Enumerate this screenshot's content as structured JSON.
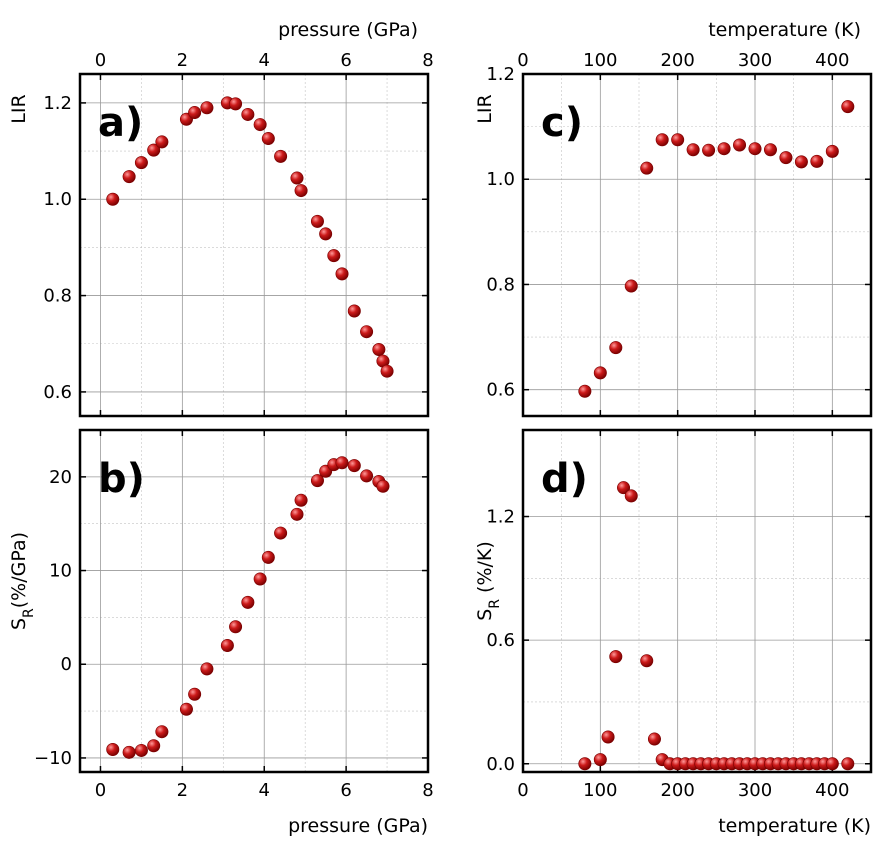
{
  "colors": {
    "marker": "#cc1a1a",
    "marker_highlight": "#ff9a9a",
    "marker_edge": "#7a0000",
    "grid": "#9a9a9a",
    "frame": "#000000"
  },
  "chart_data": [
    {
      "id": "a",
      "type": "scatter",
      "panel_label": "a)",
      "xlabel": "pressure (GPa)",
      "ylabel": "LIR",
      "xlabel_position": "top",
      "xlim": [
        -0.5,
        8
      ],
      "ylim": [
        0.55,
        1.26
      ],
      "xticks": [
        0,
        2,
        4,
        6,
        8
      ],
      "yticks": [
        0.6,
        0.8,
        1.0,
        1.2
      ],
      "ytick_labels": [
        "0.6",
        "0.8",
        "1.0",
        "1.2"
      ],
      "show_bottom_ticklabels": false,
      "grid": true,
      "x": [
        0.3,
        0.7,
        1.0,
        1.3,
        1.5,
        2.1,
        2.3,
        2.6,
        3.1,
        3.3,
        3.6,
        3.9,
        4.1,
        4.4,
        4.8,
        4.9,
        5.3,
        5.5,
        5.7,
        5.9,
        6.2,
        6.5,
        6.8,
        6.9,
        7.0
      ],
      "y": [
        1.0,
        1.047,
        1.076,
        1.102,
        1.119,
        1.166,
        1.18,
        1.19,
        1.2,
        1.198,
        1.176,
        1.155,
        1.126,
        1.089,
        1.044,
        1.018,
        0.954,
        0.928,
        0.883,
        0.845,
        0.768,
        0.725,
        0.688,
        0.664,
        0.643
      ]
    },
    {
      "id": "b",
      "type": "scatter",
      "panel_label": "b)",
      "xlabel": "pressure (GPa)",
      "ylabel": "S",
      "ylabel_sub": "R",
      "ylabel_suffix": "(%/GPa)",
      "xlabel_position": "bottom",
      "xlim": [
        -0.5,
        8
      ],
      "ylim": [
        -11.5,
        25
      ],
      "xticks": [
        0,
        2,
        4,
        6,
        8
      ],
      "yticks": [
        -10,
        0,
        10,
        20
      ],
      "ytick_labels": [
        "−10",
        "0",
        "10",
        "20"
      ],
      "show_bottom_ticklabels": true,
      "grid": true,
      "x": [
        0.3,
        0.7,
        1.0,
        1.3,
        1.5,
        2.1,
        2.3,
        2.6,
        3.1,
        3.3,
        3.6,
        3.9,
        4.1,
        4.4,
        4.8,
        4.9,
        5.3,
        5.5,
        5.7,
        5.9,
        6.2,
        6.5,
        6.8,
        6.9
      ],
      "y": [
        -9.1,
        -9.4,
        -9.2,
        -8.7,
        -7.2,
        -4.8,
        -3.2,
        -0.5,
        2.0,
        4.0,
        6.6,
        9.1,
        11.4,
        14.0,
        16.0,
        17.5,
        19.6,
        20.6,
        21.3,
        21.5,
        21.2,
        20.1,
        19.5,
        19.0
      ]
    },
    {
      "id": "c",
      "type": "scatter",
      "panel_label": "c)",
      "xlabel": "temperature (K)",
      "ylabel": "LIR",
      "xlabel_position": "top",
      "xlim": [
        0,
        450
      ],
      "ylim": [
        0.55,
        1.2
      ],
      "xticks": [
        0,
        100,
        200,
        300,
        400
      ],
      "yticks": [
        0.6,
        0.8,
        1.0,
        1.2
      ],
      "ytick_labels": [
        "0.6",
        "0.8",
        "1.0",
        "1.2"
      ],
      "show_bottom_ticklabels": false,
      "grid": true,
      "x": [
        80,
        100,
        120,
        140,
        160,
        180,
        200,
        220,
        240,
        260,
        280,
        300,
        320,
        340,
        360,
        380,
        400,
        420
      ],
      "y": [
        0.597,
        0.632,
        0.68,
        0.797,
        1.021,
        1.075,
        1.075,
        1.056,
        1.055,
        1.058,
        1.065,
        1.058,
        1.056,
        1.041,
        1.033,
        1.034,
        1.053,
        1.138
      ]
    },
    {
      "id": "d",
      "type": "scatter",
      "panel_label": "d)",
      "xlabel": "temperature (K)",
      "ylabel": "S",
      "ylabel_sub": "R",
      "ylabel_suffix": " (%/K)",
      "xlabel_position": "bottom",
      "xlim": [
        0,
        450
      ],
      "ylim": [
        -0.04,
        1.62
      ],
      "xticks": [
        0,
        100,
        200,
        300,
        400
      ],
      "yticks": [
        0.0,
        0.6,
        1.2
      ],
      "ytick_labels": [
        "0.0",
        "0.6",
        "1.2"
      ],
      "show_bottom_ticklabels": true,
      "grid": true,
      "x": [
        80,
        100,
        110,
        120,
        130,
        140,
        160,
        170,
        180,
        190,
        200,
        210,
        220,
        230,
        240,
        250,
        260,
        270,
        280,
        290,
        300,
        310,
        320,
        330,
        340,
        350,
        360,
        370,
        380,
        390,
        400,
        420
      ],
      "y": [
        0.0,
        0.02,
        0.13,
        0.52,
        1.34,
        1.3,
        0.5,
        0.12,
        0.02,
        0.0,
        0.0,
        0.0,
        0.0,
        0.0,
        0.0,
        0.0,
        0.0,
        0.0,
        0.0,
        0.0,
        0.0,
        0.0,
        0.0,
        0.0,
        0.0,
        0.0,
        0.0,
        0.0,
        0.0,
        0.0,
        0.0,
        0.0
      ]
    }
  ]
}
